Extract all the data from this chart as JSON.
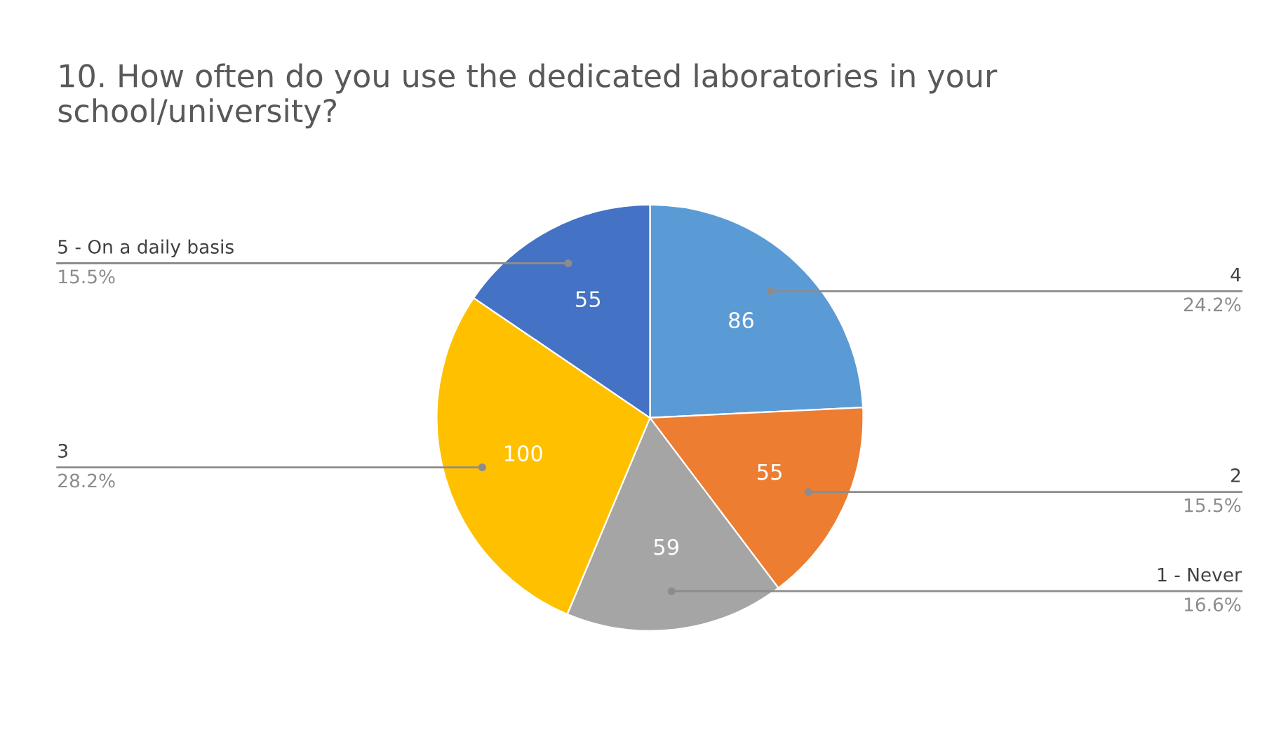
{
  "chart_data": {
    "type": "pie",
    "title": "10. How often do you use the dedicated laboratories in your school/university?",
    "categories": [
      "4",
      "2",
      "1 - Never",
      "3",
      "5 - On a daily basis"
    ],
    "values": [
      86,
      55,
      59,
      100,
      55
    ],
    "colors": [
      "#5b9bd5",
      "#ed7d31",
      "#a5a5a5",
      "#ffc000",
      "#4472c4"
    ],
    "data_labels": true,
    "annotations": [
      "24.2%",
      "15.5%",
      "16.6%",
      "28.2%",
      "15.5%"
    ],
    "legend": false
  }
}
